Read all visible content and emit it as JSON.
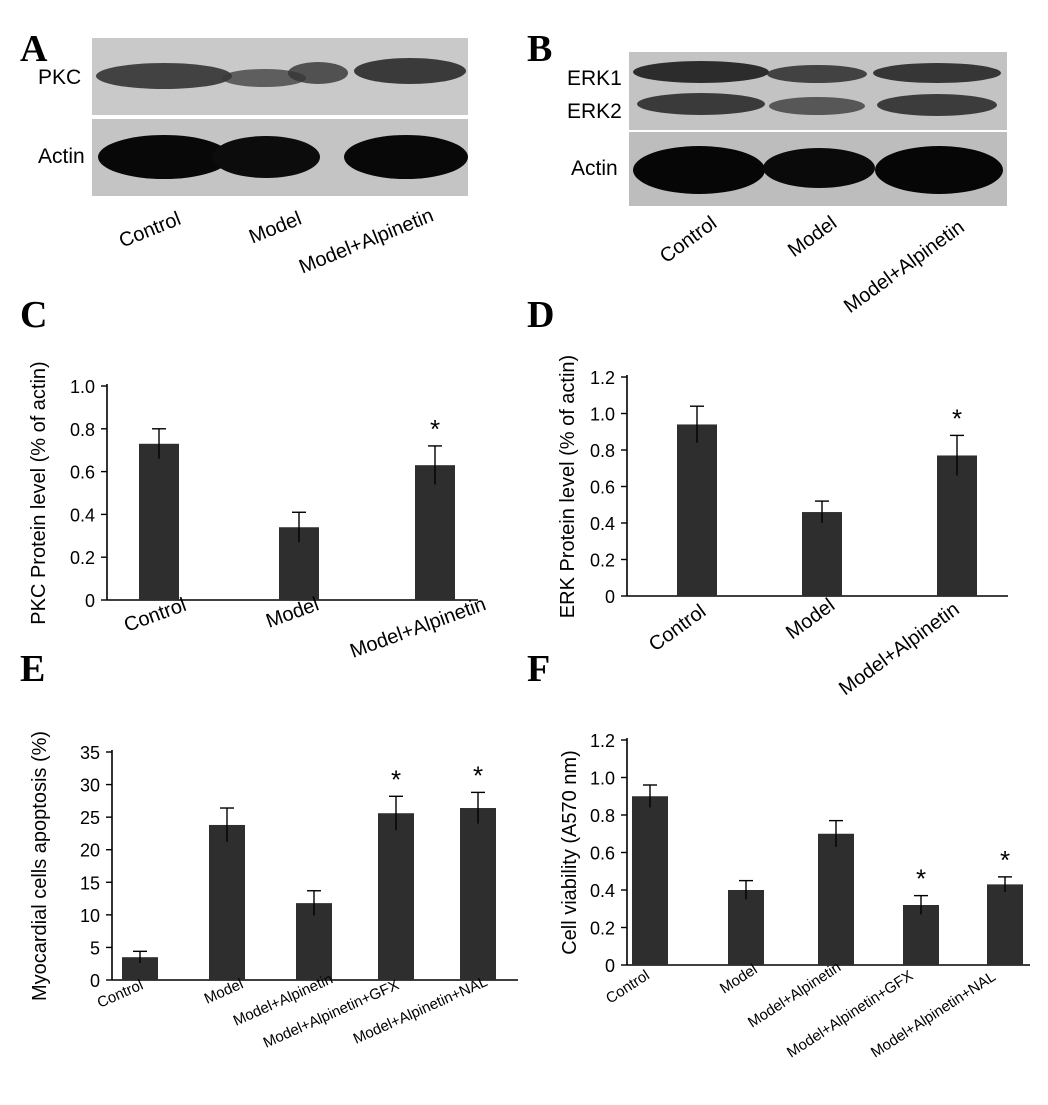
{
  "panels": {
    "a": {
      "letter": "A",
      "labels": [
        "PKC",
        "Actin"
      ],
      "lanes": [
        "Control",
        "Model",
        "Model+Alpinetin"
      ]
    },
    "b": {
      "letter": "B",
      "labels": [
        "ERK1",
        "ERK2",
        "Actin"
      ],
      "lanes": [
        "Control",
        "Model",
        "Model+Alpinetin"
      ]
    },
    "c_letter": "C",
    "d_letter": "D",
    "e_letter": "E",
    "f_letter": "F"
  },
  "chart_data": [
    {
      "id": "C",
      "type": "bar",
      "categories": [
        "Control",
        "Model",
        "Model+Alpinetin"
      ],
      "values": [
        0.73,
        0.34,
        0.63
      ],
      "errors": [
        0.07,
        0.07,
        0.09
      ],
      "significance": [
        "",
        "",
        "*"
      ],
      "ylabel": "PKC Protein level (% of actin)",
      "ylim": [
        0,
        1.0
      ],
      "yticks": [
        "0",
        "0.2",
        "0.4",
        "0.6",
        "0.8",
        "1.0"
      ],
      "bar_color": "#2e2e2e"
    },
    {
      "id": "D",
      "type": "bar",
      "categories": [
        "Control",
        "Model",
        "Model+Alpinetin"
      ],
      "values": [
        0.94,
        0.46,
        0.77
      ],
      "errors": [
        0.1,
        0.06,
        0.11
      ],
      "significance": [
        "",
        "",
        "*"
      ],
      "ylabel": "ERK Protein level (% of actin)",
      "ylim": [
        0,
        1.2
      ],
      "yticks": [
        "0",
        "0.2",
        "0.4",
        "0.6",
        "0.8",
        "1.0",
        "1.2"
      ],
      "bar_color": "#2e2e2e"
    },
    {
      "id": "E",
      "type": "bar",
      "categories": [
        "Control",
        "Model",
        "Model+Alpinetin",
        "Model+Alpinetin+GFX",
        "Model+Alpinetin+NAL"
      ],
      "values": [
        3.5,
        23.8,
        11.8,
        25.6,
        26.4
      ],
      "errors": [
        0.9,
        2.6,
        1.9,
        2.6,
        2.4
      ],
      "significance": [
        "",
        "",
        "",
        "*",
        "*"
      ],
      "ylabel": "Myocardial cells apoptosis (%)",
      "ylim": [
        0,
        35
      ],
      "yticks": [
        "0",
        "5",
        "10",
        "15",
        "20",
        "25",
        "30",
        "35"
      ],
      "bar_color": "#2e2e2e"
    },
    {
      "id": "F",
      "type": "bar",
      "categories": [
        "Control",
        "Model",
        "Model+Alpinetin",
        "Model+Alpinetin+GFX",
        "Model+Alpinetin+NAL"
      ],
      "values": [
        0.9,
        0.4,
        0.7,
        0.32,
        0.43
      ],
      "errors": [
        0.06,
        0.05,
        0.07,
        0.05,
        0.04
      ],
      "significance": [
        "",
        "",
        "",
        "*",
        "*"
      ],
      "ylabel": "Cell viability (A570 nm)",
      "ylim": [
        0,
        1.2
      ],
      "yticks": [
        "0",
        "0.2",
        "0.4",
        "0.6",
        "0.8",
        "1.0",
        "1.2"
      ],
      "bar_color": "#2e2e2e"
    }
  ]
}
